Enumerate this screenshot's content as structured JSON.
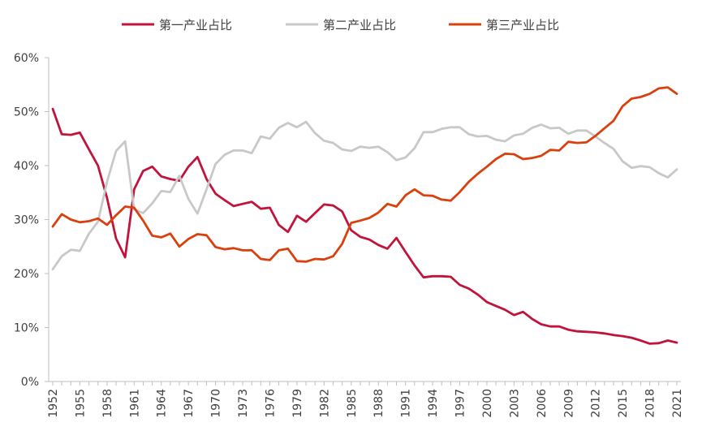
{
  "chart_data": {
    "type": "line",
    "title": "",
    "xlabel": "",
    "ylabel": "",
    "ylim": [
      0,
      60
    ],
    "yticks": [
      "0%",
      "10%",
      "20%",
      "30%",
      "40%",
      "50%",
      "60%"
    ],
    "grid": false,
    "legend_position": "top",
    "x": [
      1952,
      1953,
      1954,
      1955,
      1956,
      1957,
      1958,
      1959,
      1960,
      1961,
      1962,
      1963,
      1964,
      1965,
      1966,
      1967,
      1968,
      1969,
      1970,
      1971,
      1972,
      1973,
      1974,
      1975,
      1976,
      1977,
      1978,
      1979,
      1980,
      1981,
      1982,
      1983,
      1984,
      1985,
      1986,
      1987,
      1988,
      1989,
      1990,
      1991,
      1992,
      1993,
      1994,
      1995,
      1996,
      1997,
      1998,
      1999,
      2000,
      2001,
      2002,
      2003,
      2004,
      2005,
      2006,
      2007,
      2008,
      2009,
      2010,
      2011,
      2012,
      2013,
      2014,
      2015,
      2016,
      2017,
      2018,
      2019,
      2020,
      2021
    ],
    "xticks": [
      "1952",
      "1955",
      "1958",
      "1961",
      "1964",
      "1967",
      "1970",
      "1973",
      "1976",
      "1979",
      "1982",
      "1985",
      "1988",
      "1991",
      "1994",
      "1997",
      "2000",
      "2003",
      "2006",
      "2009",
      "2012",
      "2015",
      "2018",
      "2021"
    ],
    "series": [
      {
        "name": "第一产业占比",
        "color": "#c0143c",
        "values": [
          50.5,
          45.8,
          45.7,
          46.1,
          43.0,
          40.0,
          34.0,
          26.5,
          23.0,
          35.6,
          39.0,
          39.8,
          38.0,
          37.5,
          37.2,
          39.8,
          41.6,
          37.5,
          34.8,
          33.6,
          32.5,
          32.9,
          33.3,
          32.0,
          32.2,
          29.0,
          27.7,
          30.7,
          29.6,
          31.2,
          32.8,
          32.6,
          31.5,
          28.0,
          26.8,
          26.3,
          25.3,
          24.6,
          26.6,
          24.0,
          21.5,
          19.3,
          19.5,
          19.5,
          19.4,
          17.9,
          17.2,
          16.1,
          14.7,
          14.0,
          13.3,
          12.3,
          12.9,
          11.6,
          10.6,
          10.2,
          10.2,
          9.6,
          9.3,
          9.2,
          9.1,
          8.9,
          8.6,
          8.4,
          8.1,
          7.6,
          7.0,
          7.1,
          7.6,
          7.2
        ]
      },
      {
        "name": "第二产业占比",
        "color": "#c8c8c8",
        "values": [
          20.8,
          23.2,
          24.4,
          24.2,
          27.4,
          29.6,
          37.0,
          42.7,
          44.5,
          31.9,
          31.2,
          33.0,
          35.3,
          35.1,
          38.1,
          33.8,
          31.1,
          35.6,
          40.3,
          42.0,
          42.8,
          42.8,
          42.3,
          45.4,
          45.0,
          47.0,
          47.9,
          47.1,
          48.1,
          46.0,
          44.6,
          44.2,
          43.0,
          42.7,
          43.5,
          43.3,
          43.5,
          42.5,
          41.0,
          41.5,
          43.2,
          46.2,
          46.2,
          46.8,
          47.1,
          47.1,
          45.8,
          45.4,
          45.5,
          44.8,
          44.5,
          45.6,
          45.9,
          47.0,
          47.6,
          46.9,
          47.0,
          45.9,
          46.5,
          46.5,
          45.4,
          44.2,
          43.1,
          40.8,
          39.6,
          39.9,
          39.7,
          38.6,
          37.8,
          39.3
        ]
      },
      {
        "name": "第三产业占比",
        "color": "#d9400e",
        "values": [
          28.7,
          31.0,
          30.0,
          29.5,
          29.7,
          30.2,
          29.0,
          30.8,
          32.4,
          32.2,
          29.8,
          27.0,
          26.7,
          27.4,
          25.0,
          26.4,
          27.3,
          27.1,
          24.9,
          24.5,
          24.7,
          24.3,
          24.3,
          22.7,
          22.5,
          24.3,
          24.6,
          22.3,
          22.2,
          22.7,
          22.6,
          23.2,
          25.5,
          29.4,
          29.8,
          30.3,
          31.3,
          32.9,
          32.4,
          34.5,
          35.6,
          34.5,
          34.4,
          33.7,
          33.5,
          35.1,
          37.0,
          38.5,
          39.8,
          41.2,
          42.2,
          42.1,
          41.2,
          41.4,
          41.8,
          42.9,
          42.8,
          44.4,
          44.2,
          44.3,
          45.5,
          46.9,
          48.3,
          51.0,
          52.4,
          52.7,
          53.3,
          54.3,
          54.5,
          53.3
        ]
      }
    ]
  }
}
